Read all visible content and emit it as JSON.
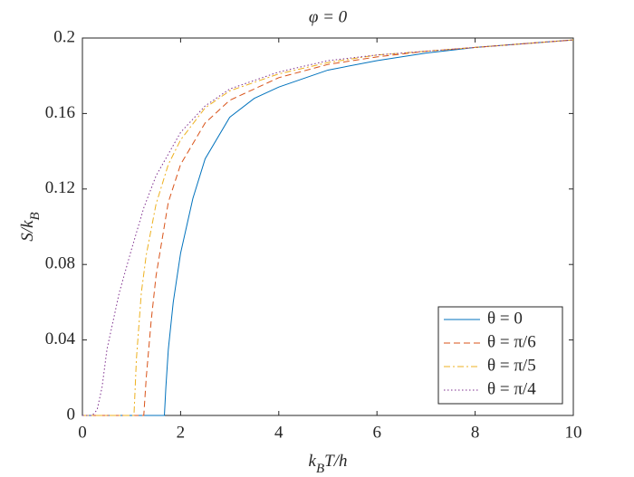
{
  "chart_data": {
    "type": "line",
    "title": "φ = 0",
    "xlabel": [
      {
        "text": "k"
      },
      {
        "text": "B",
        "sub": true
      },
      {
        "text": "T/h"
      }
    ],
    "ylabel": [
      {
        "text": "S/k"
      },
      {
        "text": "B",
        "sub": true
      }
    ],
    "xlim": [
      0,
      10
    ],
    "ylim": [
      0,
      0.2
    ],
    "xticks": [
      0,
      2,
      4,
      6,
      8,
      10
    ],
    "yticks": [
      0,
      0.04,
      0.08,
      0.12,
      0.16,
      0.2
    ],
    "grid": false,
    "legend": "lower-right",
    "series": [
      {
        "name": "θ = 0",
        "color": "#0072BD",
        "linestyle": "solid",
        "x": [
          0,
          1.67,
          1.7,
          1.75,
          1.85,
          2,
          2.25,
          2.5,
          3,
          3.5,
          4,
          5,
          6,
          7,
          8,
          9,
          10
        ],
        "values": [
          0,
          0,
          0.015,
          0.035,
          0.06,
          0.086,
          0.115,
          0.136,
          0.158,
          0.168,
          0.174,
          0.183,
          0.188,
          0.192,
          0.195,
          0.197,
          0.199
        ]
      },
      {
        "name": "θ = π/6",
        "color": "#D95319",
        "linestyle": "dashed",
        "x": [
          0,
          1.25,
          1.3,
          1.4,
          1.5,
          1.75,
          2,
          2.5,
          3,
          4,
          5,
          6,
          7,
          8,
          9,
          10
        ],
        "values": [
          0,
          0,
          0.02,
          0.05,
          0.074,
          0.113,
          0.133,
          0.155,
          0.167,
          0.179,
          0.186,
          0.19,
          0.193,
          0.195,
          0.197,
          0.199
        ]
      },
      {
        "name": "θ = π/5",
        "color": "#EDB120",
        "linestyle": "dashdot",
        "x": [
          0,
          1.05,
          1.1,
          1.2,
          1.3,
          1.5,
          1.75,
          2,
          2.5,
          3,
          4,
          5,
          6,
          7,
          8,
          9,
          10
        ],
        "values": [
          0,
          0,
          0.03,
          0.065,
          0.085,
          0.112,
          0.133,
          0.146,
          0.163,
          0.172,
          0.181,
          0.187,
          0.191,
          0.193,
          0.195,
          0.197,
          0.199
        ]
      },
      {
        "name": "θ = π/4",
        "color": "#7E2F8E",
        "linestyle": "dotted",
        "x": [
          0,
          0.2,
          0.3,
          0.4,
          0.5,
          0.75,
          1,
          1.25,
          1.5,
          2,
          2.5,
          3,
          4,
          5,
          6,
          7,
          8,
          9,
          10
        ],
        "values": [
          0,
          0,
          0.003,
          0.015,
          0.035,
          0.065,
          0.088,
          0.11,
          0.127,
          0.15,
          0.164,
          0.173,
          0.182,
          0.188,
          0.191,
          0.193,
          0.195,
          0.197,
          0.199
        ]
      }
    ]
  }
}
